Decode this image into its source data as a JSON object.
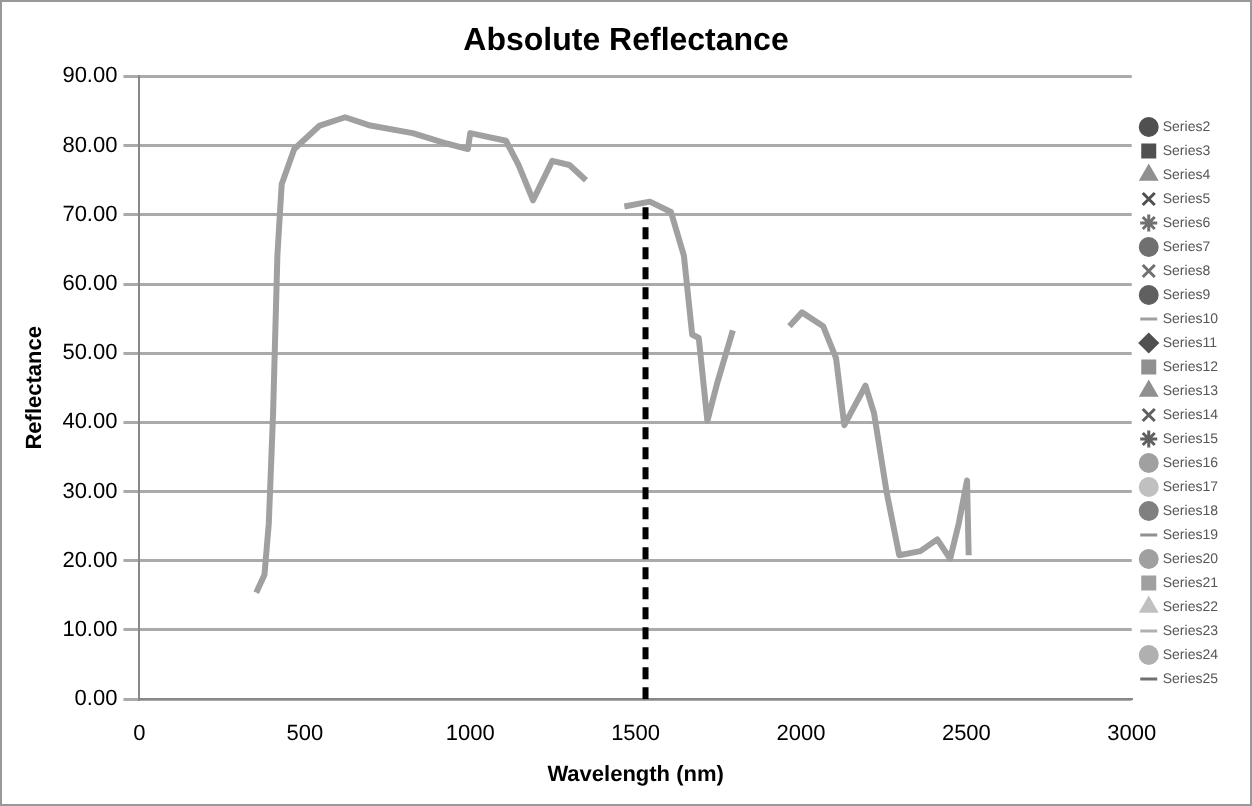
{
  "chart_data": {
    "type": "line",
    "title": "Absolute Reflectance",
    "xlabel": "Wavelength (nm)",
    "ylabel": "Reflectance",
    "xlim": [
      0,
      3000
    ],
    "xticks": [
      0,
      500,
      1000,
      1500,
      2000,
      2500,
      3000
    ],
    "ylim": [
      0,
      90
    ],
    "yticks": [
      {
        "value": 0,
        "label": "0.00"
      },
      {
        "value": 10,
        "label": "10.00"
      },
      {
        "value": 20,
        "label": "20.00"
      },
      {
        "value": 30,
        "label": "30.00"
      },
      {
        "value": 40,
        "label": "40.00"
      },
      {
        "value": 50,
        "label": "50.00"
      },
      {
        "value": 60,
        "label": "60.00"
      },
      {
        "value": 70,
        "label": "70.00"
      },
      {
        "value": 80,
        "label": "80.00"
      },
      {
        "value": 90,
        "label": "90.00"
      }
    ],
    "grid": "y",
    "legend": "right",
    "series": [
      {
        "color": "#a0a0a0",
        "marker": "none",
        "line_style": "solid",
        "x": [
          353,
          378,
          391,
          404,
          417,
          430,
          468,
          545,
          622,
          698,
          826,
          929,
          993,
          1000,
          1108,
          1146,
          1190,
          1248,
          1300,
          1350,
          1400,
          1466,
          1543,
          1607,
          1646,
          1671,
          1691,
          1717,
          1748,
          1794,
          1880,
          1965,
          2003,
          2067,
          2106,
          2131,
          2195,
          2221,
          2259,
          2297,
          2361,
          2412,
          2451,
          2477,
          2502,
          2507
        ],
        "values": [
          15.4,
          18.0,
          25.4,
          41.3,
          64.1,
          74.4,
          79.5,
          82.9,
          84.1,
          82.9,
          81.8,
          80.3,
          79.5,
          81.8,
          80.7,
          77.2,
          72.1,
          77.8,
          77.2,
          75.0,
          null,
          71.2,
          71.9,
          70.4,
          64.1,
          52.7,
          52.2,
          40.2,
          45.9,
          53.3,
          null,
          53.9,
          55.9,
          53.9,
          49.3,
          39.6,
          45.3,
          41.3,
          29.9,
          20.8,
          21.4,
          23.1,
          20.3,
          25.4,
          31.6,
          20.8
        ]
      },
      {
        "color": "#000000",
        "marker": "none",
        "line_style": "dashed",
        "x": [
          1530,
          1530
        ],
        "values": [
          0,
          72
        ]
      },
      {
        "name": "Series2",
        "color": "#505050",
        "marker": "circle"
      },
      {
        "name": "Series3",
        "color": "#505050",
        "marker": "square"
      },
      {
        "name": "Series4",
        "color": "#909090",
        "marker": "triangle"
      },
      {
        "name": "Series5",
        "color": "#505050",
        "marker": "cross"
      },
      {
        "name": "Series6",
        "color": "#707070",
        "marker": "star"
      },
      {
        "name": "Series7",
        "color": "#707070",
        "marker": "circle"
      },
      {
        "name": "Series8",
        "color": "#707070",
        "marker": "cross"
      },
      {
        "name": "Series9",
        "color": "#606060",
        "marker": "circle"
      },
      {
        "name": "Series10",
        "color": "#a0a0a0",
        "marker": "none"
      },
      {
        "name": "Series11",
        "color": "#505050",
        "marker": "diamond"
      },
      {
        "name": "Series12",
        "color": "#909090",
        "marker": "square"
      },
      {
        "name": "Series13",
        "color": "#909090",
        "marker": "triangle"
      },
      {
        "name": "Series14",
        "color": "#606060",
        "marker": "cross"
      },
      {
        "name": "Series15",
        "color": "#606060",
        "marker": "star"
      },
      {
        "name": "Series16",
        "color": "#a0a0a0",
        "marker": "circle"
      },
      {
        "name": "Series17",
        "color": "#c0c0c0",
        "marker": "circle"
      },
      {
        "name": "Series18",
        "color": "#808080",
        "marker": "circle"
      },
      {
        "name": "Series19",
        "color": "#909090",
        "marker": "none"
      },
      {
        "name": "Series20",
        "color": "#a0a0a0",
        "marker": "circle"
      },
      {
        "name": "Series21",
        "color": "#a0a0a0",
        "marker": "square"
      },
      {
        "name": "Series22",
        "color": "#c0c0c0",
        "marker": "triangle"
      },
      {
        "name": "Series23",
        "color": "#b0b0b0",
        "marker": "none"
      },
      {
        "name": "Series24",
        "color": "#b0b0b0",
        "marker": "circle"
      },
      {
        "name": "Series25",
        "color": "#707070",
        "marker": "none"
      }
    ]
  }
}
